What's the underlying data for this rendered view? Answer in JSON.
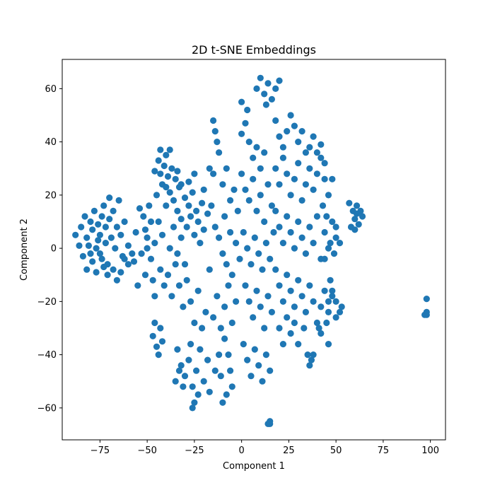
{
  "chart_data": {
    "type": "scatter",
    "title": "2D t-SNE Embeddings",
    "xlabel": "Component 1",
    "ylabel": "Component 2",
    "xlim": [
      -95,
      108
    ],
    "ylim": [
      -72,
      71
    ],
    "xticks": [
      -75,
      -50,
      -25,
      0,
      25,
      50,
      75,
      100
    ],
    "yticks": [
      -60,
      -40,
      -20,
      0,
      20,
      40,
      60
    ],
    "xtick_labels": [
      "−75",
      "−50",
      "−25",
      "0",
      "25",
      "50",
      "75",
      "100"
    ],
    "ytick_labels": [
      "−60",
      "−40",
      "−20",
      "0",
      "20",
      "40",
      "60"
    ],
    "grid": false,
    "marker_color": "#1f77b4",
    "series": [
      {
        "values": [
          [
            -85,
            8
          ],
          [
            -83,
            12
          ],
          [
            -82,
            4
          ],
          [
            -80,
            10
          ],
          [
            -80,
            -2
          ],
          [
            -79,
            7
          ],
          [
            -78,
            14
          ],
          [
            -77,
            0
          ],
          [
            -76,
            9
          ],
          [
            -75,
            5
          ],
          [
            -74,
            12
          ],
          [
            -74,
            -4
          ],
          [
            -73,
            16
          ],
          [
            -72,
            2
          ],
          [
            -72,
            8
          ],
          [
            -71,
            -6
          ],
          [
            -70,
            11
          ],
          [
            -70,
            19
          ],
          [
            -69,
            4
          ],
          [
            -68,
            -8
          ],
          [
            -68,
            14
          ],
          [
            -67,
            0
          ],
          [
            -66,
            8
          ],
          [
            -66,
            -12
          ],
          [
            -65,
            18
          ],
          [
            -64,
            5
          ],
          [
            -63,
            -3
          ],
          [
            -62,
            10
          ],
          [
            -60,
            1
          ],
          [
            -60,
            -6
          ],
          [
            -58,
            -2
          ],
          [
            -56,
            6
          ],
          [
            -84,
            -3
          ],
          [
            -82,
            -8
          ],
          [
            -86,
            1
          ],
          [
            -79,
            -5
          ],
          [
            -77,
            -9
          ],
          [
            -75,
            -2
          ],
          [
            -73,
            -7
          ],
          [
            -71,
            -10
          ],
          [
            -88,
            5
          ],
          [
            -81,
            1
          ],
          [
            -76,
            3
          ],
          [
            -64,
            -9
          ],
          [
            -62,
            -4
          ],
          [
            -57,
            -5
          ],
          [
            -54,
            15
          ],
          [
            -52,
            12
          ],
          [
            -51,
            7
          ],
          [
            -49,
            16
          ],
          [
            -50,
            4
          ],
          [
            -48,
            10
          ],
          [
            -53,
            -2
          ],
          [
            -50,
            0
          ],
          [
            -48,
            -4
          ],
          [
            -47,
            -12
          ],
          [
            -46,
            2
          ],
          [
            -51,
            -10
          ],
          [
            -55,
            -14
          ],
          [
            -46,
            -18
          ],
          [
            -44,
            33
          ],
          [
            -43,
            28
          ],
          [
            -42,
            24
          ],
          [
            -41,
            31
          ],
          [
            -40,
            35
          ],
          [
            -39,
            27
          ],
          [
            -38,
            21
          ],
          [
            -37,
            30
          ],
          [
            -36,
            18
          ],
          [
            -35,
            26
          ],
          [
            -34,
            14
          ],
          [
            -33,
            23
          ],
          [
            -32,
            11
          ],
          [
            -30,
            19
          ],
          [
            -29,
            8
          ],
          [
            -28,
            16
          ],
          [
            -27,
            12
          ],
          [
            -26,
            21
          ],
          [
            -25,
            5
          ],
          [
            -24,
            14
          ],
          [
            -23,
            10
          ],
          [
            -22,
            2
          ],
          [
            -21,
            17
          ],
          [
            -20,
            7
          ],
          [
            -44,
            10
          ],
          [
            -42,
            5
          ],
          [
            -40,
            16
          ],
          [
            -38,
            0
          ],
          [
            -36,
            8
          ],
          [
            -34,
            -2
          ],
          [
            -32,
            4
          ],
          [
            -30,
            -6
          ],
          [
            -45,
            20
          ],
          [
            -40,
            23
          ],
          [
            -34,
            29
          ],
          [
            -46,
            29
          ],
          [
            -43,
            37
          ],
          [
            -38,
            37
          ],
          [
            -32,
            24
          ],
          [
            -28,
            25
          ],
          [
            -25,
            28
          ],
          [
            -20,
            22
          ],
          [
            -18,
            13
          ],
          [
            -43,
            -8
          ],
          [
            -41,
            -14
          ],
          [
            -39,
            -10
          ],
          [
            -37,
            -18
          ],
          [
            -35,
            -6
          ],
          [
            -33,
            -14
          ],
          [
            -31,
            -22
          ],
          [
            -29,
            -12
          ],
          [
            -27,
            -20
          ],
          [
            -25,
            -28
          ],
          [
            -23,
            -16
          ],
          [
            -21,
            -30
          ],
          [
            -19,
            -24
          ],
          [
            -17,
            -8
          ],
          [
            -15,
            -26
          ],
          [
            -13,
            -18
          ],
          [
            -11,
            -30
          ],
          [
            -9,
            -22
          ],
          [
            -7,
            -14
          ],
          [
            -5,
            -28
          ],
          [
            -3,
            -20
          ],
          [
            -47,
            -33
          ],
          [
            -45,
            -37
          ],
          [
            -44,
            -40
          ],
          [
            -43,
            -30
          ],
          [
            -42,
            -35
          ],
          [
            -46,
            -28
          ],
          [
            -34,
            -38
          ],
          [
            -32,
            -44
          ],
          [
            -30,
            -48
          ],
          [
            -28,
            -42
          ],
          [
            -26,
            -52
          ],
          [
            -25,
            -58
          ],
          [
            -24,
            -46
          ],
          [
            -22,
            -38
          ],
          [
            -20,
            -50
          ],
          [
            -18,
            -42
          ],
          [
            -17,
            -54
          ],
          [
            -14,
            -46
          ],
          [
            -12,
            -40
          ],
          [
            -35,
            -50
          ],
          [
            -33,
            -46
          ],
          [
            -31,
            -52
          ],
          [
            -27,
            -36
          ],
          [
            -23,
            -55
          ],
          [
            -26,
            -60
          ],
          [
            -15,
            48
          ],
          [
            -14,
            44
          ],
          [
            -13,
            40
          ],
          [
            -12,
            36
          ],
          [
            -17,
            30
          ],
          [
            -15,
            28
          ],
          [
            -10,
            24
          ],
          [
            -8,
            30
          ],
          [
            -6,
            18
          ],
          [
            -4,
            22
          ],
          [
            -2,
            14
          ],
          [
            -9,
            12
          ],
          [
            -6,
            6
          ],
          [
            -3,
            2
          ],
          [
            -12,
            4
          ],
          [
            -10,
            -2
          ],
          [
            -8,
            -6
          ],
          [
            -5,
            -10
          ],
          [
            -1,
            -4
          ],
          [
            -14,
            8
          ],
          [
            -16,
            16
          ],
          [
            -9,
            -34
          ],
          [
            -7,
            -40
          ],
          [
            -6,
            -46
          ],
          [
            -5,
            -52
          ],
          [
            -10,
            -58
          ],
          [
            -8,
            -55
          ],
          [
            -11,
            -48
          ],
          [
            0,
            43
          ],
          [
            2,
            47
          ],
          [
            4,
            40
          ],
          [
            6,
            34
          ],
          [
            8,
            38
          ],
          [
            10,
            30
          ],
          [
            12,
            36
          ],
          [
            3,
            52
          ],
          [
            0,
            55
          ],
          [
            0,
            28
          ],
          [
            2,
            22
          ],
          [
            4,
            18
          ],
          [
            6,
            26
          ],
          [
            8,
            14
          ],
          [
            10,
            20
          ],
          [
            12,
            10
          ],
          [
            14,
            24
          ],
          [
            16,
            16
          ],
          [
            1,
            6
          ],
          [
            3,
            0
          ],
          [
            5,
            -6
          ],
          [
            7,
            4
          ],
          [
            9,
            -2
          ],
          [
            11,
            -8
          ],
          [
            13,
            2
          ],
          [
            15,
            -4
          ],
          [
            17,
            6
          ],
          [
            2,
            -14
          ],
          [
            4,
            -20
          ],
          [
            6,
            -26
          ],
          [
            8,
            -16
          ],
          [
            10,
            -22
          ],
          [
            12,
            -30
          ],
          [
            14,
            -18
          ],
          [
            16,
            -24
          ],
          [
            1,
            -36
          ],
          [
            3,
            -42
          ],
          [
            5,
            -48
          ],
          [
            7,
            -38
          ],
          [
            9,
            -44
          ],
          [
            11,
            -50
          ],
          [
            13,
            -40
          ],
          [
            15,
            -46
          ],
          [
            8,
            60
          ],
          [
            10,
            64
          ],
          [
            12,
            58
          ],
          [
            14,
            62
          ],
          [
            16,
            56
          ],
          [
            18,
            60
          ],
          [
            20,
            63
          ],
          [
            13,
            54
          ],
          [
            18,
            48
          ],
          [
            20,
            42
          ],
          [
            22,
            38
          ],
          [
            24,
            44
          ],
          [
            26,
            50
          ],
          [
            28,
            46
          ],
          [
            30,
            40
          ],
          [
            32,
            44
          ],
          [
            18,
            30
          ],
          [
            20,
            24
          ],
          [
            22,
            34
          ],
          [
            24,
            28
          ],
          [
            26,
            20
          ],
          [
            28,
            26
          ],
          [
            30,
            32
          ],
          [
            32,
            18
          ],
          [
            34,
            24
          ],
          [
            36,
            30
          ],
          [
            38,
            22
          ],
          [
            40,
            28
          ],
          [
            42,
            34
          ],
          [
            44,
            26
          ],
          [
            46,
            20
          ],
          [
            48,
            26
          ],
          [
            36,
            38
          ],
          [
            38,
            42
          ],
          [
            40,
            36
          ],
          [
            42,
            39
          ],
          [
            44,
            32
          ],
          [
            34,
            36
          ],
          [
            18,
            14
          ],
          [
            20,
            8
          ],
          [
            22,
            2
          ],
          [
            24,
            12
          ],
          [
            26,
            6
          ],
          [
            28,
            0
          ],
          [
            30,
            10
          ],
          [
            32,
            4
          ],
          [
            34,
            -2
          ],
          [
            36,
            8
          ],
          [
            38,
            2
          ],
          [
            40,
            12
          ],
          [
            42,
            -4
          ],
          [
            44,
            6
          ],
          [
            46,
            0
          ],
          [
            48,
            10
          ],
          [
            18,
            -8
          ],
          [
            20,
            -14
          ],
          [
            22,
            -20
          ],
          [
            24,
            -10
          ],
          [
            26,
            -16
          ],
          [
            28,
            -22
          ],
          [
            30,
            -12
          ],
          [
            32,
            -18
          ],
          [
            34,
            -24
          ],
          [
            36,
            -14
          ],
          [
            38,
            -20
          ],
          [
            40,
            -28
          ],
          [
            42,
            -22
          ],
          [
            44,
            -16
          ],
          [
            46,
            -24
          ],
          [
            48,
            -18
          ],
          [
            50,
            -26
          ],
          [
            20,
            -30
          ],
          [
            22,
            -36
          ],
          [
            24,
            -26
          ],
          [
            26,
            -32
          ],
          [
            28,
            -28
          ],
          [
            30,
            -36
          ],
          [
            33,
            -30
          ],
          [
            35,
            -40
          ],
          [
            37,
            -42
          ],
          [
            36,
            -44
          ],
          [
            38,
            -40
          ],
          [
            46,
            -20
          ],
          [
            48,
            -16
          ],
          [
            50,
            -20
          ],
          [
            52,
            -24
          ],
          [
            53,
            -22
          ],
          [
            47,
            -12
          ],
          [
            45,
            -28
          ],
          [
            42,
            -32
          ],
          [
            41,
            -30
          ],
          [
            46,
            -36
          ],
          [
            44,
            -4
          ],
          [
            47,
            2
          ],
          [
            50,
            4
          ],
          [
            49,
            -2
          ],
          [
            43,
            16
          ],
          [
            45,
            12
          ],
          [
            52,
            2
          ],
          [
            50,
            8
          ],
          [
            57,
            17
          ],
          [
            59,
            14
          ],
          [
            60,
            11
          ],
          [
            61,
            16
          ],
          [
            62,
            9
          ],
          [
            63,
            14
          ],
          [
            64,
            12
          ],
          [
            58,
            8
          ],
          [
            60,
            7
          ],
          [
            61,
            13
          ],
          [
            98,
            -25
          ],
          [
            98,
            -19
          ],
          [
            97,
            -25
          ],
          [
            98,
            -24
          ],
          [
            15,
            -66
          ],
          [
            15,
            -65
          ],
          [
            14,
            -66
          ]
        ]
      }
    ]
  }
}
